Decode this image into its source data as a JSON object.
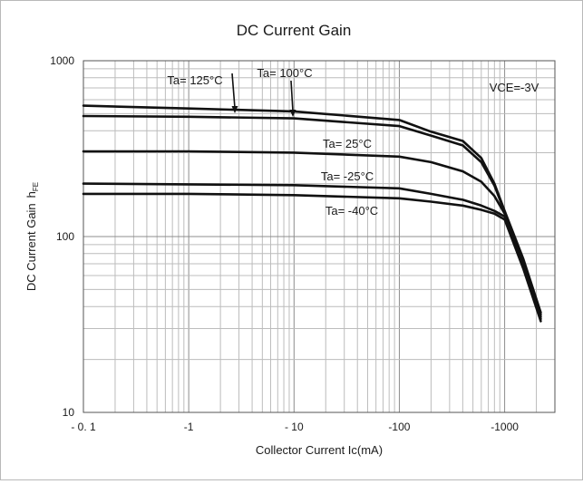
{
  "chart_data": {
    "type": "line",
    "title": "DC Current Gain",
    "xlabel": "Collector Current   Ic(mA)",
    "ylabel": "DC Current Gain",
    "ylabel_symbol": "h",
    "ylabel_subscript": "FE",
    "x_scale": "log",
    "y_scale": "log",
    "xlim": [
      0.1,
      3000
    ],
    "ylim": [
      10,
      1000
    ],
    "x_ticks": [
      {
        "value": 0.1,
        "label": "- 0. 1"
      },
      {
        "value": 1,
        "label": "-1"
      },
      {
        "value": 10,
        "label": "- 10"
      },
      {
        "value": 100,
        "label": "-100"
      },
      {
        "value": 1000,
        "label": "-1000"
      }
    ],
    "y_ticks": [
      {
        "value": 10,
        "label": "10"
      },
      {
        "value": 100,
        "label": "100"
      },
      {
        "value": 1000,
        "label": "1000"
      }
    ],
    "grid": true,
    "condition_label": "VCE=-3V",
    "series": [
      {
        "name": "Ta= 125°C",
        "x": [
          0.1,
          1,
          10,
          100,
          200,
          400,
          600,
          800,
          1000,
          1500,
          2200
        ],
        "y": [
          555,
          535,
          515,
          460,
          395,
          350,
          280,
          200,
          140,
          75,
          37
        ]
      },
      {
        "name": "Ta= 100°C",
        "x": [
          0.1,
          1,
          10,
          100,
          200,
          400,
          600,
          800,
          1000,
          1500,
          2200
        ],
        "y": [
          485,
          480,
          470,
          425,
          375,
          330,
          265,
          195,
          138,
          73,
          36
        ]
      },
      {
        "name": "Ta= 25°C",
        "x": [
          0.1,
          1,
          10,
          100,
          200,
          400,
          600,
          800,
          1000,
          1500,
          2200
        ],
        "y": [
          305,
          305,
          300,
          285,
          265,
          235,
          205,
          170,
          135,
          70,
          35
        ]
      },
      {
        "name": "Ta= -25°C",
        "x": [
          0.1,
          1,
          10,
          100,
          200,
          400,
          600,
          800,
          1000,
          1500,
          2200
        ],
        "y": [
          200,
          198,
          196,
          188,
          175,
          162,
          150,
          140,
          130,
          68,
          34
        ]
      },
      {
        "name": "Ta= -40°C",
        "x": [
          0.1,
          1,
          10,
          100,
          200,
          400,
          600,
          800,
          1000,
          1500,
          2200
        ],
        "y": [
          175,
          175,
          172,
          165,
          158,
          150,
          142,
          135,
          125,
          66,
          33
        ]
      }
    ]
  }
}
